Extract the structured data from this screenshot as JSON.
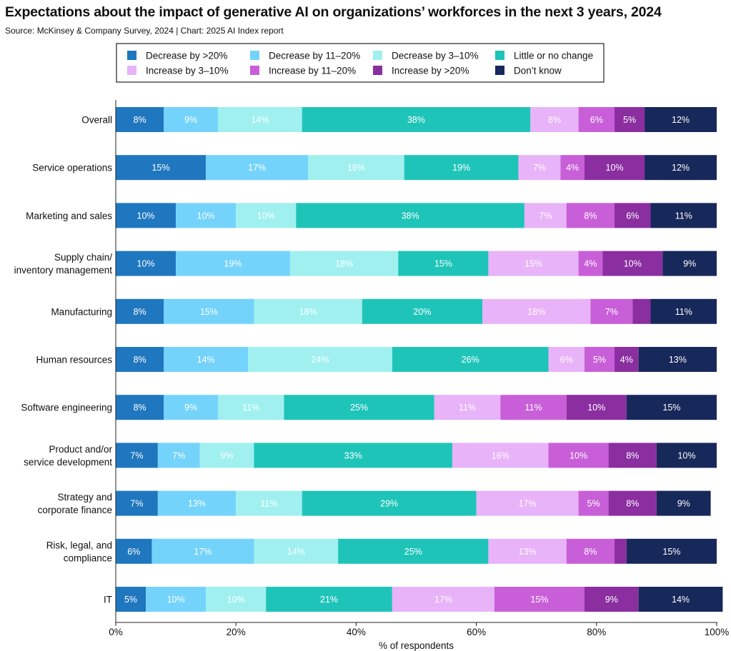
{
  "title": "Expectations about the impact of generative AI on organizations’ workforces in the next 3 years, 2024",
  "subtitle": "Source: McKinsey & Company Survey, 2024 | Chart: 2025 AI Index report",
  "chart_data": {
    "type": "bar",
    "orientation": "horizontal",
    "stacked": true,
    "xlabel": "% of respondents",
    "xlim": [
      0,
      100
    ],
    "xticks": [
      "0%",
      "20%",
      "40%",
      "60%",
      "80%",
      "100%"
    ],
    "xtick_values": [
      0,
      20,
      40,
      60,
      80,
      100
    ],
    "grid": false,
    "legend_position": "top",
    "categories": [
      [
        "Overall"
      ],
      [
        "Service operations"
      ],
      [
        "Marketing and sales"
      ],
      [
        "Supply chain/",
        "inventory management"
      ],
      [
        "Manufacturing"
      ],
      [
        "Human resources"
      ],
      [
        "Software engineering"
      ],
      [
        "Product and/or",
        "service development"
      ],
      [
        "Strategy and",
        "corporate finance"
      ],
      [
        "Risk, legal, and",
        "compliance"
      ],
      [
        "IT"
      ]
    ],
    "series": [
      {
        "name": "Decrease by >20%",
        "color": "#1f77bf",
        "label_color": "#ffffff",
        "values": [
          8,
          15,
          10,
          10,
          8,
          8,
          8,
          7,
          7,
          6,
          5
        ],
        "labels": [
          "8%",
          "15%",
          "10%",
          "10%",
          "8%",
          "8%",
          "8%",
          "7%",
          "7%",
          "6%",
          "5%"
        ]
      },
      {
        "name": "Decrease by 11–20%",
        "color": "#73d3fb",
        "label_color": "#ffffff",
        "values": [
          9,
          17,
          10,
          19,
          15,
          14,
          9,
          7,
          13,
          17,
          10
        ],
        "labels": [
          "9%",
          "17%",
          "10%",
          "19%",
          "15%",
          "14%",
          "9%",
          "7%",
          "13%",
          "17%",
          "10%"
        ]
      },
      {
        "name": "Decrease by 3–10%",
        "color": "#a0f0f0",
        "label_color": "#ffffff",
        "values": [
          14,
          16,
          10,
          18,
          18,
          24,
          11,
          9,
          11,
          14,
          10
        ],
        "labels": [
          "14%",
          "16%",
          "10%",
          "18%",
          "18%",
          "24%",
          "11%",
          "9%",
          "11%",
          "14%",
          "10%"
        ]
      },
      {
        "name": "Little or no change",
        "color": "#1fc4b9",
        "label_color": "#ffffff",
        "values": [
          38,
          19,
          38,
          15,
          20,
          26,
          25,
          33,
          29,
          25,
          21
        ],
        "labels": [
          "38%",
          "19%",
          "38%",
          "15%",
          "20%",
          "26%",
          "25%",
          "33%",
          "29%",
          "25%",
          "21%"
        ]
      },
      {
        "name": "Increase by 3–10%",
        "color": "#e8b3f8",
        "label_color": "#ffffff",
        "values": [
          8,
          7,
          7,
          15,
          18,
          6,
          11,
          16,
          17,
          13,
          17
        ],
        "labels": [
          "8%",
          "7%",
          "7%",
          "15%",
          "18%",
          "6%",
          "11%",
          "16%",
          "17%",
          "13%",
          "17%"
        ]
      },
      {
        "name": "Increase by 11–20%",
        "color": "#c85fd8",
        "label_color": "#ffffff",
        "values": [
          6,
          4,
          8,
          4,
          7,
          5,
          11,
          10,
          5,
          8,
          15
        ],
        "labels": [
          "6%",
          "4%",
          "8%",
          "4%",
          "7%",
          "5%",
          "11%",
          "10%",
          "5%",
          "8%",
          "15%"
        ]
      },
      {
        "name": "Increase by >20%",
        "color": "#8a2ea0",
        "label_color": "#ffffff",
        "values": [
          5,
          10,
          6,
          10,
          3,
          4,
          10,
          8,
          8,
          2,
          9
        ],
        "labels": [
          "5%",
          "10%",
          "6%",
          "10%",
          "",
          "4%",
          "10%",
          "8%",
          "8%",
          "",
          "9%"
        ]
      },
      {
        "name": "Don’t know",
        "color": "#17285a",
        "label_color": "#ffffff",
        "values": [
          12,
          12,
          11,
          9,
          11,
          13,
          15,
          10,
          9,
          15,
          14
        ],
        "labels": [
          "12%",
          "12%",
          "11%",
          "9%",
          "11%",
          "13%",
          "15%",
          "10%",
          "9%",
          "15%",
          "14%"
        ]
      }
    ]
  }
}
